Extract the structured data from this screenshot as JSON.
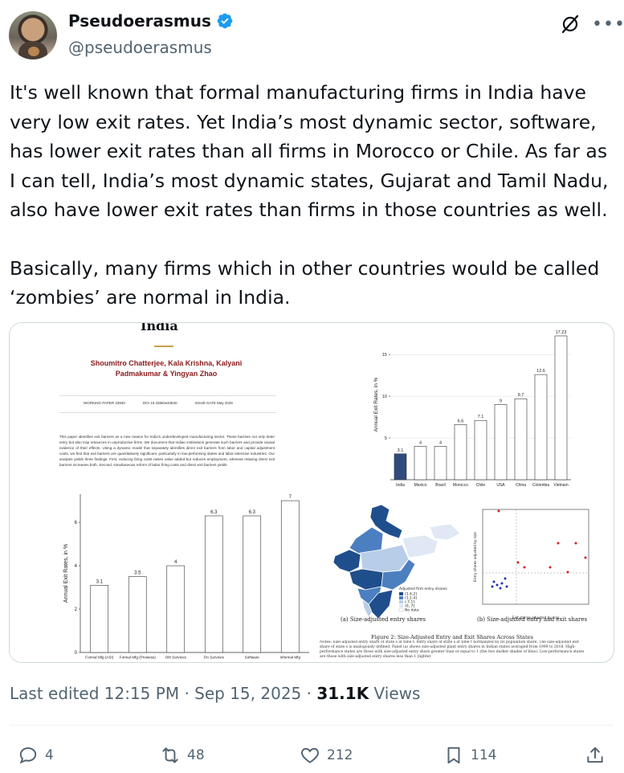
{
  "author": {
    "display_name": "Pseudoerasmus",
    "handle": "@pseudoerasmus"
  },
  "tweet": {
    "paragraph_1": "It's well known that formal manufacturing firms in India have very low exit rates. Yet India’s most dynamic sector, software, has lower exit rates than all firms in Morocco or Chile. As far as I can tell, India’s most dynamic states, Gujarat and Tamil Nadu, also have lower exit rates than firms in those countries as well.",
    "paragraph_2": "Basically, many firms which in other countries would be called ‘zombies’ are normal in India."
  },
  "paper": {
    "title": "India",
    "authors_line1": "Shoumitro Chatterjee, Kala Krishna, Kalyani",
    "authors_line2": "Padmakumar & Yingyan Zhao",
    "working_paper": "WORKING PAPER 33830",
    "doi": "DOI 10.3386/w33830",
    "issue_date": "ISSUE DATE May 2025",
    "abstract": "This paper identifies exit barriers as a new reason for India's underdeveloped manufacturing sector. These barriers not only deter entry but also trap resources in unproductive firms. We document that Indian institutions generate such barriers and provide causal evidence of their effects. Using a dynamic model that separately identifies direct exit barriers from labor and capital adjustment costs, we find that exit barriers are quantitatively significant, particularly in low-performing states and labor-intensive industries. Our analysis yields three findings. First, reducing firing costs raises value added but reduces employment, whereas relaxing direct exit barriers increases both. Second, simultaneous reform of labor firing costs and direct exit barriers yields"
  },
  "chart_data": [
    {
      "type": "bar",
      "ylabel": "Annual Exit Rates, in %",
      "categories": [
        "Formal Mfg (ASI)",
        "Formal Mfg (Prowess)",
        "Oth Services",
        "Fin Services",
        "Software",
        "Informal Mfg"
      ],
      "values": [
        3.1,
        3.5,
        4,
        6.3,
        6.3,
        7
      ],
      "value_labels": [
        "3.1",
        "3.5",
        "4",
        "6.3",
        "6.3",
        "7"
      ],
      "yticks": [
        "0",
        "2",
        "4",
        "6"
      ],
      "ylim": [
        0,
        7.3
      ],
      "bar_color": "#ffffff"
    },
    {
      "type": "bar",
      "ylabel": "Annual Exit Rates, in %",
      "categories": [
        "India",
        "Mexico",
        "Brazil",
        "Morocco",
        "Chile",
        "USA",
        "China",
        "Colombia",
        "Vietnam"
      ],
      "values": [
        3.1,
        4,
        4,
        6.6,
        7.1,
        9,
        9.7,
        12.6,
        17.23
      ],
      "value_labels": [
        "3.1",
        "4",
        "4",
        "6.6",
        "7.1",
        "9",
        "9.7",
        "12.6",
        "17.23"
      ],
      "yticks": [
        "5",
        "10",
        "15"
      ],
      "ylim": [
        0,
        18
      ],
      "highlight_color": "#2f4b7c",
      "bar_color": "#ffffff"
    }
  ],
  "figure": {
    "map_caption": "(a) Size-adjusted entry shares",
    "scatter_caption": "(b) Size-adjusted entry and exit shares",
    "title": "Figure 2: Size-Adjusted Entry and Exit Shares Across States",
    "notes": "Notes: Size-adjusted entry share of state s at time t: entry share of state s at time t normalized by its population share. The size-adjusted exit share of state s is analogously defined. Panel (a) shows size-adjusted plant entry shares in Indian states averaged from 1999 to 2018. High-performance states are those with size-adjusted entry share greater than or equal to 1 (the two darker shades of blue). Low-performance states are those with size-adjusted entry shares less than 1 (lighter",
    "map_legend_title": "Adjusted firm entry shares",
    "map_legend": [
      "(1.4,2]",
      "(1,1.4]",
      "(.7,1]",
      "(0,.7]",
      "No data"
    ],
    "scatter_xlabel": "Exit shares adjusted by size",
    "scatter_ylabel": "Entry shares adjusted by size"
  },
  "footer": {
    "edited_label": "Last edited 12:15 PM · Sep 15, 2025 · ",
    "views_count": "31.1K",
    "views_label": " Views"
  },
  "actions": {
    "replies": "4",
    "reposts": "48",
    "likes": "212",
    "bookmarks": "114"
  },
  "colors": {
    "accent": "#1d9bf0",
    "muted": "#536471",
    "map_dark": "#1f4e8c",
    "map_mid": "#4c7fbf",
    "map_light": "#b8cde8"
  }
}
